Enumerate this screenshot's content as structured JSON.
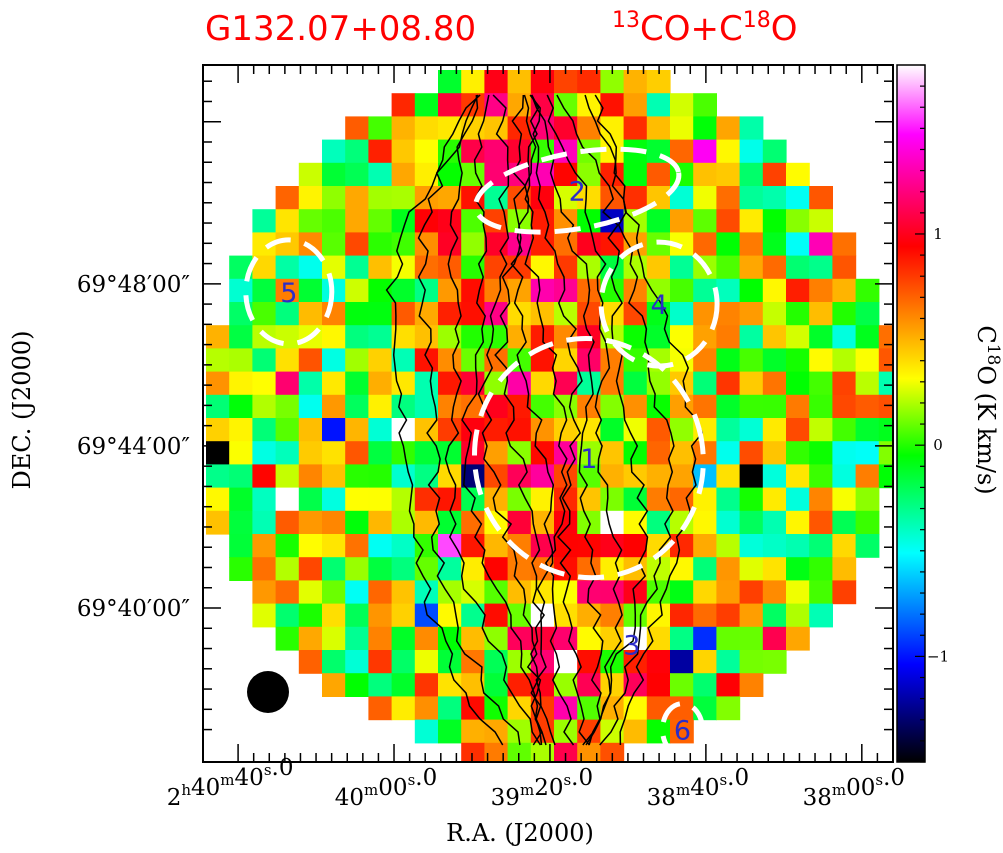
{
  "title": {
    "source": "G132.07+08.80",
    "lines": {
      "sup1": "13",
      "part1": "CO+C",
      "sup2": "18",
      "part2": "O"
    }
  },
  "chart_data": {
    "type": "heatmap",
    "xlabel": "R.A. (J2000)",
    "ylabel": "DEC. (J2000)",
    "x_ticks": [
      {
        "h": "2",
        "m": "40",
        "s": "40",
        "frac": "0",
        "full": true,
        "ra_sec": 9640
      },
      {
        "m": "40",
        "s": "00",
        "frac": "0",
        "ra_sec": 9600
      },
      {
        "m": "39",
        "s": "20",
        "frac": "0",
        "ra_sec": 9560
      },
      {
        "m": "38",
        "s": "40",
        "frac": "0",
        "ra_sec": 9520
      },
      {
        "m": "38",
        "s": "00",
        "frac": "0",
        "ra_sec": 9480
      }
    ],
    "y_ticks": [
      {
        "label": "69°48′00″",
        "dec_min": 48
      },
      {
        "label": "69°44′00″",
        "dec_min": 44
      },
      {
        "label": "69°40′00″",
        "dec_min": 40
      }
    ],
    "xlim_ra_sec": [
      9649,
      9472
    ],
    "ylim_dec_min": [
      36.2,
      53.4
    ],
    "colorbar": {
      "label_parts": {
        "sup": "18",
        "c": "C",
        "rest": "O (K km/s)"
      },
      "range": [
        -1.5,
        1.8
      ],
      "ticks": [
        {
          "label": "1",
          "value": 1
        },
        {
          "label": "0",
          "value": 0
        },
        {
          "label": "−1",
          "value": -1
        }
      ],
      "colormap": [
        "#000000",
        "#0000ff",
        "#00ffff",
        "#00ff00",
        "#ffff00",
        "#ff0000",
        "#ff00ff",
        "#ffffff"
      ]
    },
    "map": {
      "shape": "circular",
      "grid": "30x30",
      "seed": 7
    },
    "clumps": [
      {
        "id": "1",
        "ra_sec": 9550,
        "dec_min": 43.7
      },
      {
        "id": "2",
        "ra_sec": 9553,
        "dec_min": 50.3
      },
      {
        "id": "3",
        "ra_sec": 9539,
        "dec_min": 39.1
      },
      {
        "id": "4",
        "ra_sec": 9532,
        "dec_min": 47.5
      },
      {
        "id": "5",
        "ra_sec": 9627,
        "dec_min": 47.8
      },
      {
        "id": "6",
        "ra_sec": 9526,
        "dec_min": 37.0
      }
    ],
    "beam": "filled circle (lower-left)"
  }
}
